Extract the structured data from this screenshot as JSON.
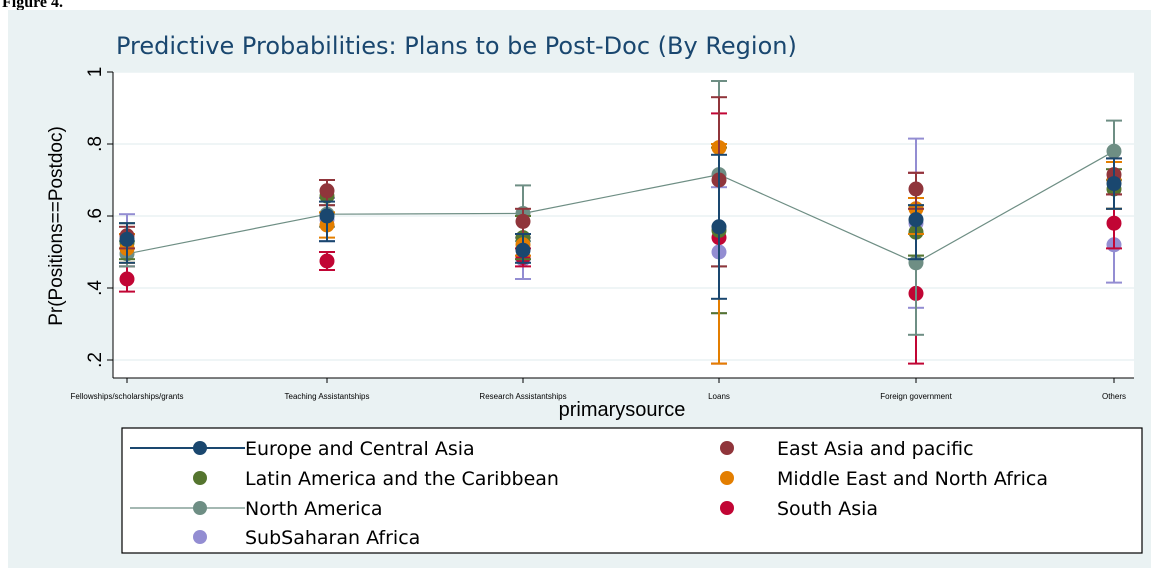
{
  "figure_label": "Figure 4.",
  "chart_data": {
    "type": "scatter",
    "title": "Predictive Probabilities: Plans to be Post-Doc (By Region)",
    "xlabel": "primarysource",
    "ylabel": "Pr(Positions==Postdoc)",
    "categories": [
      "Fellowships/scholarships/grants",
      "Teaching Assistantships",
      "Research Assistantships",
      "Loans",
      "Foreign government",
      "Others"
    ],
    "ylim": [
      0.15,
      1.0
    ],
    "yticks": [
      0.2,
      0.4,
      0.6,
      0.8,
      1.0
    ],
    "ytick_labels": [
      ".2",
      ".4",
      ".6",
      ".8",
      "1"
    ],
    "grid": true,
    "legend_position": "bottom",
    "series": [
      {
        "name": "Europe and Central Asia",
        "color": "#1a476f",
        "marker": "line-dot",
        "values": [
          0.535,
          0.6,
          0.505,
          0.57,
          0.59,
          0.69
        ],
        "ci_low": [
          0.47,
          0.53,
          0.47,
          0.37,
          0.48,
          0.62
        ],
        "ci_high": [
          0.58,
          0.64,
          0.55,
          0.77,
          0.63,
          0.76
        ]
      },
      {
        "name": "East Asia and pacific",
        "color": "#90353b",
        "marker": "dot",
        "values": [
          0.545,
          0.67,
          0.585,
          0.7,
          0.675,
          0.715
        ],
        "ci_low": [
          0.51,
          0.63,
          0.55,
          0.46,
          0.62,
          0.66
        ],
        "ci_high": [
          0.57,
          0.7,
          0.62,
          0.93,
          0.72,
          0.76
        ]
      },
      {
        "name": "Latin America and the Caribbean",
        "color": "#55752f",
        "marker": "dot",
        "values": [
          0.525,
          0.655,
          0.54,
          0.56,
          0.555,
          0.675
        ],
        "ci_low": [
          0.48,
          0.61,
          0.48,
          0.33,
          0.49,
          0.62
        ],
        "ci_high": [
          0.58,
          0.7,
          0.6,
          0.79,
          0.63,
          0.73
        ]
      },
      {
        "name": "Middle East and North Africa",
        "color": "#e37e00",
        "marker": "dot",
        "values": [
          0.51,
          0.575,
          0.52,
          0.79,
          0.62,
          0.7
        ],
        "ci_low": [
          0.47,
          0.54,
          0.49,
          0.19,
          0.55,
          0.62
        ],
        "ci_high": [
          0.55,
          0.61,
          0.55,
          0.8,
          0.65,
          0.75
        ]
      },
      {
        "name": "North America",
        "color": "#6e8e84",
        "marker": "line-dot",
        "values": [
          0.495,
          0.605,
          0.607,
          0.715,
          0.47,
          0.78
        ],
        "ci_low": [
          0.46,
          0.57,
          0.53,
          0.46,
          0.27,
          0.7
        ],
        "ci_high": [
          0.53,
          0.63,
          0.685,
          0.975,
          0.49,
          0.865
        ]
      },
      {
        "name": "South Asia",
        "color": "#c10534",
        "marker": "dot",
        "values": [
          0.425,
          0.475,
          0.485,
          0.54,
          0.385,
          0.58
        ],
        "ci_low": [
          0.39,
          0.45,
          0.46,
          0.19,
          0.19,
          0.51
        ],
        "ci_high": [
          0.46,
          0.5,
          0.51,
          0.885,
          0.72,
          0.66
        ]
      },
      {
        "name": "SubSaharan Africa",
        "color": "#938dd2",
        "marker": "dot",
        "values": [
          0.535,
          0.59,
          0.48,
          0.5,
          0.58,
          0.52
        ],
        "ci_low": [
          0.46,
          0.53,
          0.425,
          0.33,
          0.345,
          0.415
        ],
        "ci_high": [
          0.605,
          0.65,
          0.54,
          0.68,
          0.815,
          0.62
        ]
      }
    ]
  }
}
